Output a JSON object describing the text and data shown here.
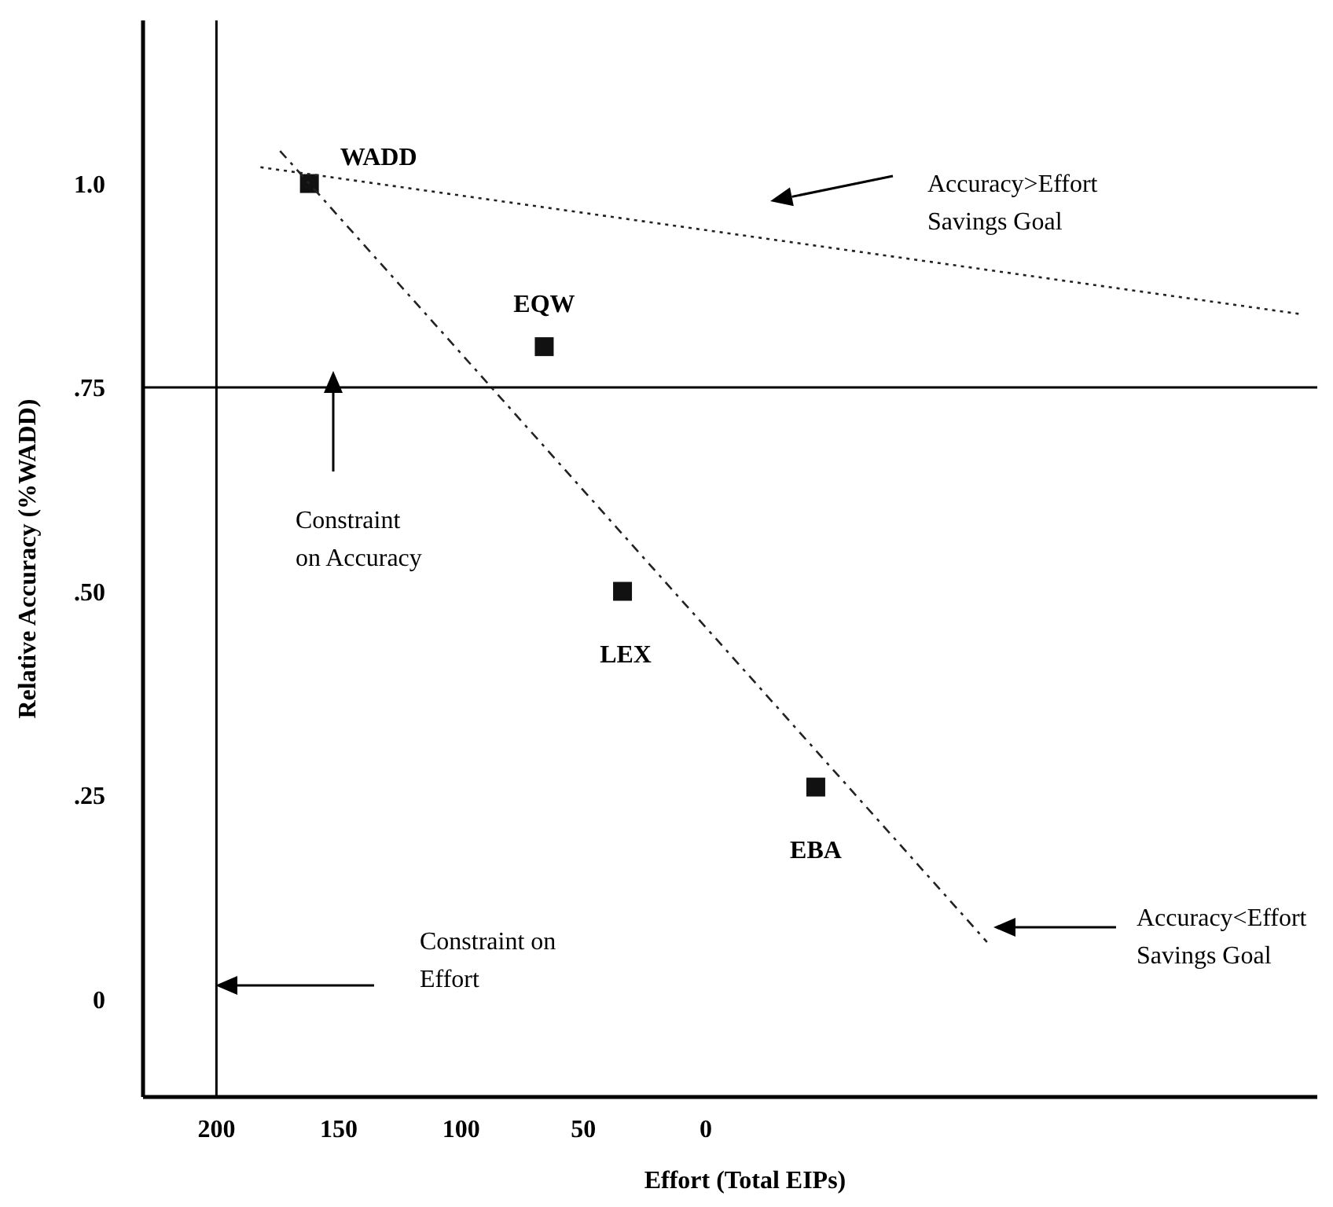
{
  "chart_data": {
    "type": "scatter",
    "xlabel": "Effort (Total EIPs)",
    "ylabel": "Relative Accuracy (%WADD)",
    "xlim": [
      230,
      -250
    ],
    "xticks": [
      200,
      150,
      100,
      50,
      0
    ],
    "ylim": [
      -0.12,
      1.2
    ],
    "yticks": [
      {
        "value": 1,
        "label": "1.0"
      },
      {
        "value": 0.75,
        "label": ".75"
      },
      {
        "value": 0.5,
        "label": ".50"
      },
      {
        "value": 0.25,
        "label": ".25"
      },
      0
    ],
    "marker": "square",
    "series": [
      {
        "color": "#111111",
        "x": [
          162,
          66,
          34,
          -45
        ],
        "values": [
          1.0,
          0.8,
          0.5,
          0.26
        ]
      },
      {
        "type": "line",
        "color": "#222222",
        "line_style": "dashed",
        "marker": "none",
        "x": [
          174,
          -115
        ],
        "values": [
          1.04,
          0.07
        ]
      },
      {
        "type": "line",
        "color": "#222222",
        "line_style": "dotted",
        "marker": "none",
        "x": [
          182,
          -243
        ],
        "values": [
          1.02,
          0.84
        ]
      }
    ],
    "ref_lines": [
      {
        "axis": "y",
        "value": 0.75
      },
      {
        "axis": "x",
        "value": 200
      }
    ],
    "annotations": [
      {
        "text": "WADD",
        "x": 162,
        "y": 1.0
      },
      {
        "text": "EQW",
        "x": 66,
        "y": 0.8
      },
      {
        "text": "LEX",
        "x": 34,
        "y": 0.5
      },
      {
        "text": "EBA",
        "x": -45,
        "y": 0.26
      },
      "Accuracy>Effort\nSavings Goal",
      "Constraint\non Accuracy",
      "Accuracy<Effort\nSavings Goal",
      "Constraint on\nEffort"
    ]
  }
}
